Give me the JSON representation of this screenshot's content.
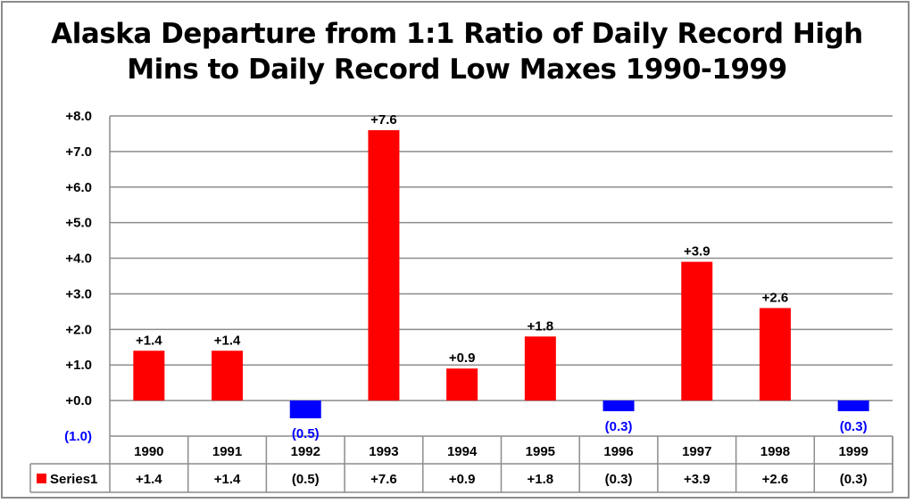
{
  "chart_data": {
    "type": "bar",
    "title_lines": [
      "Alaska Departure from 1:1 Ratio of Daily Record High",
      "Mins to Daily Record Low Maxes 1990-1999"
    ],
    "categories": [
      "1990",
      "1991",
      "1992",
      "1993",
      "1994",
      "1995",
      "1996",
      "1997",
      "1998",
      "1999"
    ],
    "series": [
      {
        "name": "Series1",
        "values": [
          1.4,
          1.4,
          -0.5,
          7.6,
          0.9,
          1.8,
          -0.3,
          3.9,
          2.6,
          -0.3
        ],
        "labels": [
          "+1.4",
          "+1.4",
          "(0.5)",
          "+7.6",
          "+0.9",
          "+1.8",
          "(0.3)",
          "+3.9",
          "+2.6",
          "(0.3)"
        ]
      }
    ],
    "y_ticks": [
      {
        "value": 8,
        "label": "+8.0"
      },
      {
        "value": 7,
        "label": "+7.0"
      },
      {
        "value": 6,
        "label": "+6.0"
      },
      {
        "value": 5,
        "label": "+5.0"
      },
      {
        "value": 4,
        "label": "+4.0"
      },
      {
        "value": 3,
        "label": "+3.0"
      },
      {
        "value": 2,
        "label": "+2.0"
      },
      {
        "value": 1,
        "label": "+1.0"
      },
      {
        "value": 0,
        "label": "+0.0"
      },
      {
        "value": -1,
        "label": "(1.0)"
      }
    ],
    "ylim": [
      -1,
      8
    ],
    "grid": true,
    "data_table": true,
    "colors": {
      "positive": "#ff0000",
      "negative": "#0000ff",
      "grid": "#8c8c8c",
      "negative_text": "#0000ff"
    }
  }
}
